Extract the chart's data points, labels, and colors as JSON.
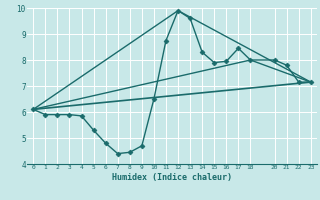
{
  "bg_color": "#c8e8e8",
  "grid_color": "#ffffff",
  "line_color": "#1a6b6b",
  "xlabel": "Humidex (Indice chaleur)",
  "xlim": [
    -0.5,
    23.5
  ],
  "ylim": [
    4,
    10
  ],
  "xticks": [
    0,
    1,
    2,
    3,
    4,
    5,
    6,
    7,
    8,
    9,
    10,
    11,
    12,
    13,
    14,
    15,
    16,
    17,
    18,
    20,
    21,
    22,
    23
  ],
  "yticks": [
    4,
    5,
    6,
    7,
    8,
    9,
    10
  ],
  "lines": [
    {
      "x": [
        0,
        1,
        2,
        3,
        4,
        5,
        6,
        7,
        8,
        9,
        10,
        11,
        12,
        13,
        14,
        15,
        16,
        17,
        18,
        20,
        21,
        22,
        23
      ],
      "y": [
        6.1,
        5.9,
        5.9,
        5.9,
        5.85,
        5.3,
        4.8,
        4.4,
        4.45,
        4.7,
        6.5,
        8.75,
        9.9,
        9.6,
        8.3,
        7.9,
        7.95,
        8.45,
        8.0,
        8.0,
        7.8,
        7.15,
        7.15
      ],
      "marker": "D",
      "markersize": 2.5,
      "linewidth": 1.0
    },
    {
      "x": [
        0,
        23
      ],
      "y": [
        6.1,
        7.15
      ],
      "marker": null,
      "linewidth": 1.2
    },
    {
      "x": [
        0,
        12,
        23
      ],
      "y": [
        6.1,
        9.9,
        7.15
      ],
      "marker": null,
      "linewidth": 1.0
    },
    {
      "x": [
        0,
        18,
        23
      ],
      "y": [
        6.1,
        8.0,
        7.15
      ],
      "marker": null,
      "linewidth": 1.0
    }
  ]
}
